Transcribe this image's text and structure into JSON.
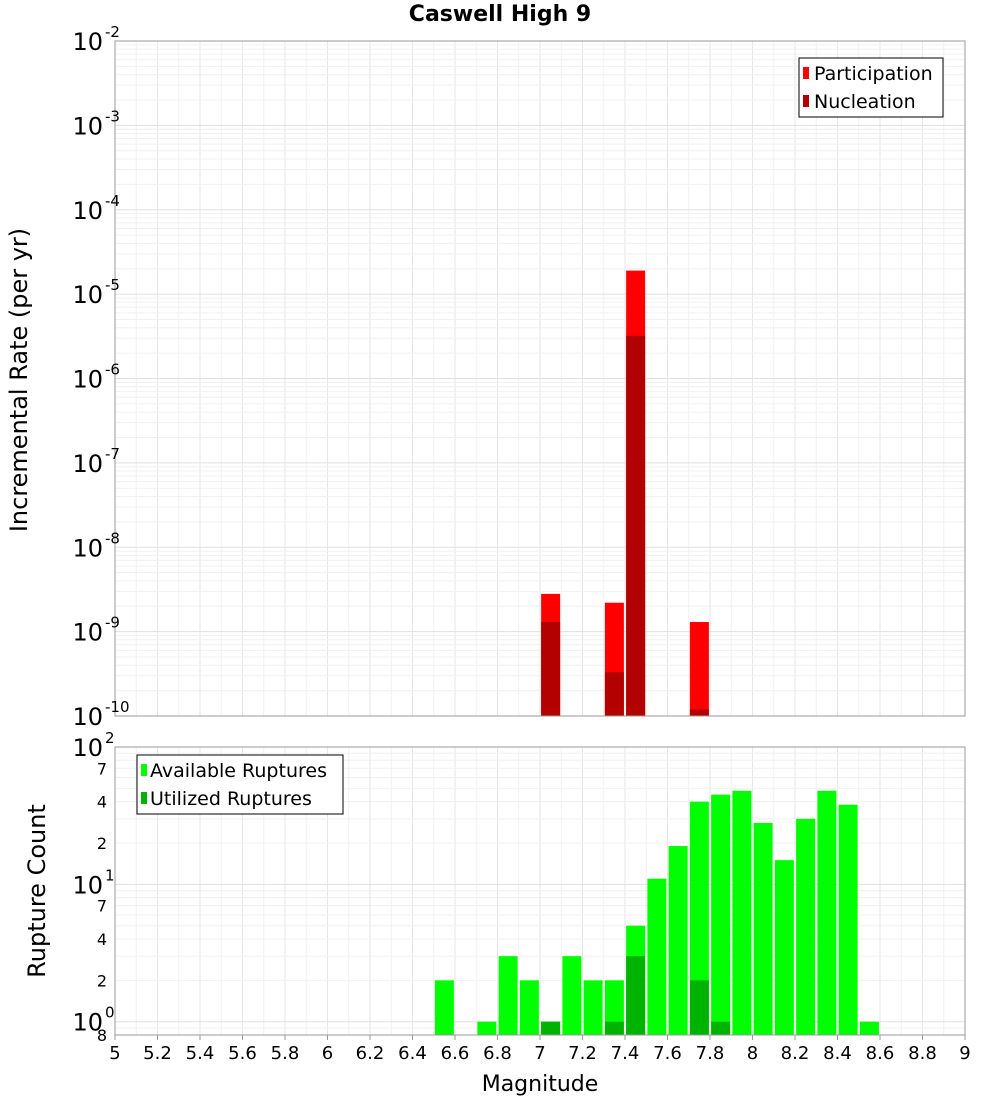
{
  "title": "Caswell High 9",
  "colors": {
    "participation": "#ff0000",
    "nucleation": "#b30000",
    "available": "#00ff00",
    "utilized": "#00b300"
  },
  "chart_data": [
    {
      "type": "bar",
      "scale": "log",
      "ylabel": "Incremental Rate (per yr)",
      "ylim": [
        1e-10,
        0.01
      ],
      "y_tick_labels": [
        {
          "base": "10",
          "exp": "-2",
          "value": 0.01
        },
        {
          "base": "10",
          "exp": "-3",
          "value": 0.001
        },
        {
          "base": "10",
          "exp": "-4",
          "value": 0.0001
        },
        {
          "base": "10",
          "exp": "-5",
          "value": 1e-05
        },
        {
          "base": "10",
          "exp": "-6",
          "value": 1e-06
        },
        {
          "base": "10",
          "exp": "-7",
          "value": 1e-07
        },
        {
          "base": "10",
          "exp": "-8",
          "value": 1e-08
        },
        {
          "base": "10",
          "exp": "-9",
          "value": 1e-09
        },
        {
          "base": "10",
          "exp": "-10",
          "value": 1e-10
        }
      ],
      "legend_position": "top-right",
      "series": [
        {
          "name": "Participation",
          "key": "participation",
          "x": [
            7.05,
            7.35,
            7.45,
            7.75
          ],
          "values": [
            2.8e-09,
            2.2e-09,
            1.9e-05,
            1.3e-09
          ]
        },
        {
          "name": "Nucleation",
          "key": "nucleation",
          "x": [
            7.05,
            7.35,
            7.45,
            7.75
          ],
          "values": [
            1.3e-09,
            3.3e-10,
            3.2e-06,
            1.2e-10
          ]
        }
      ]
    },
    {
      "type": "bar",
      "scale": "log",
      "ylabel": "Rupture Count",
      "xlabel": "Magnitude",
      "ylim": [
        0.8,
        100
      ],
      "xlim": [
        5,
        9
      ],
      "x_ticks": [
        "5",
        "5.2",
        "5.4",
        "5.6",
        "5.8",
        "6",
        "6.2",
        "6.4",
        "6.6",
        "6.8",
        "7",
        "7.2",
        "7.4",
        "7.6",
        "7.8",
        "8",
        "8.2",
        "8.4",
        "8.6",
        "8.8",
        "9"
      ],
      "y_tick_labels": [
        {
          "base": "10",
          "exp": "2",
          "value": 100
        },
        {
          "base": "",
          "exp": "",
          "label": "7",
          "value": 70
        },
        {
          "base": "",
          "exp": "",
          "label": "4",
          "value": 40
        },
        {
          "base": "",
          "exp": "",
          "label": "2",
          "value": 20
        },
        {
          "base": "10",
          "exp": "1",
          "value": 10
        },
        {
          "base": "",
          "exp": "",
          "label": "7",
          "value": 7
        },
        {
          "base": "",
          "exp": "",
          "label": "4",
          "value": 4
        },
        {
          "base": "",
          "exp": "",
          "label": "2",
          "value": 2
        },
        {
          "base": "10",
          "exp": "0",
          "value": 1
        },
        {
          "base": "",
          "exp": "",
          "label": "8",
          "value": 0.8
        }
      ],
      "legend_position": "top-left",
      "series": [
        {
          "name": "Available Ruptures",
          "key": "available",
          "x": [
            6.55,
            6.75,
            6.85,
            6.95,
            7.05,
            7.15,
            7.25,
            7.35,
            7.45,
            7.55,
            7.65,
            7.75,
            7.85,
            7.95,
            8.05,
            8.15,
            8.25,
            8.35,
            8.45,
            8.55
          ],
          "values": [
            2,
            1,
            3,
            2,
            1,
            3,
            2,
            2,
            5,
            11,
            19,
            40,
            45,
            48,
            28,
            15,
            30,
            48,
            38,
            1
          ]
        },
        {
          "name": "Utilized Ruptures",
          "key": "utilized",
          "x": [
            7.05,
            7.35,
            7.45,
            7.75,
            7.85
          ],
          "values": [
            1,
            1,
            3,
            2,
            1
          ]
        }
      ]
    }
  ]
}
